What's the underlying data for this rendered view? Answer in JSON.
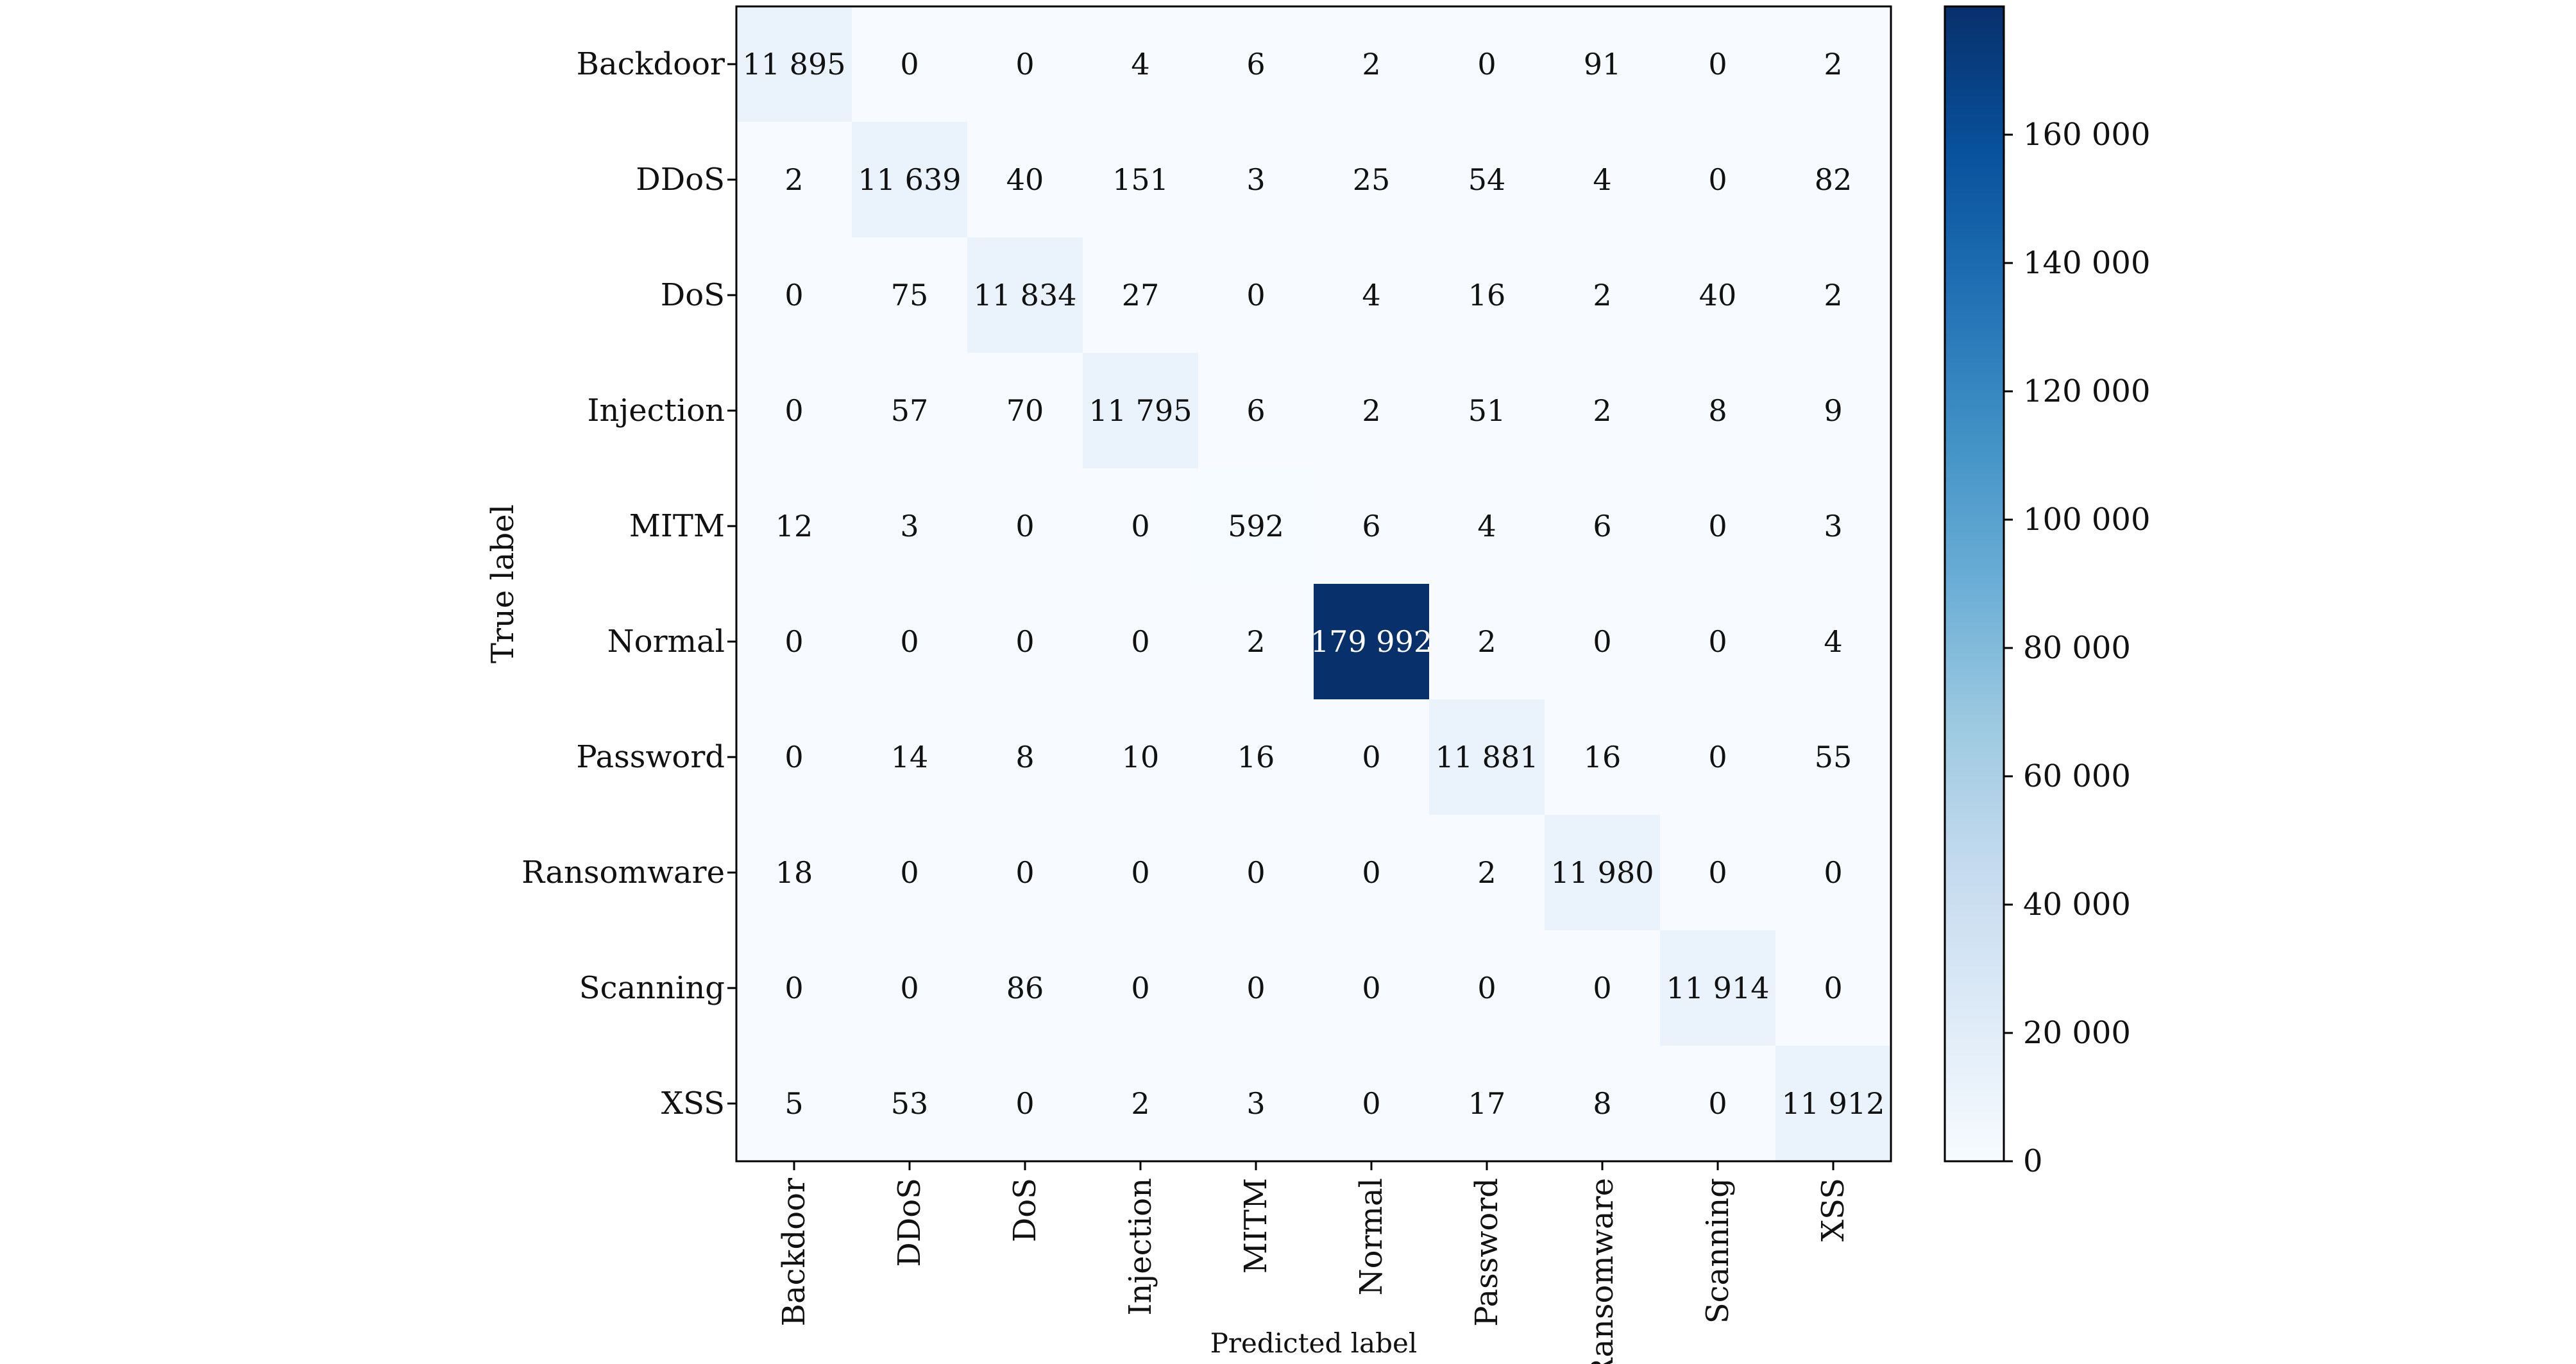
{
  "chart_data": {
    "type": "heatmap",
    "title": "",
    "xlabel": "Predicted label",
    "ylabel": "True label",
    "x_categories": [
      "Backdoor",
      "DDoS",
      "DoS",
      "Injection",
      "MITM",
      "Normal",
      "Password",
      "Ransomware",
      "Scanning",
      "XSS"
    ],
    "y_categories": [
      "Backdoor",
      "DDoS",
      "DoS",
      "Injection",
      "MITM",
      "Normal",
      "Password",
      "Ransomware",
      "Scanning",
      "XSS"
    ],
    "cell_labels": [
      [
        "11 895",
        "0",
        "0",
        "4",
        "6",
        "2",
        "0",
        "91",
        "0",
        "2"
      ],
      [
        "2",
        "11 639",
        "40",
        "151",
        "3",
        "25",
        "54",
        "4",
        "0",
        "82"
      ],
      [
        "0",
        "75",
        "11 834",
        "27",
        "0",
        "4",
        "16",
        "2",
        "40",
        "2"
      ],
      [
        "0",
        "57",
        "70",
        "11 795",
        "6",
        "2",
        "51",
        "2",
        "8",
        "9"
      ],
      [
        "12",
        "3",
        "0",
        "0",
        "592",
        "6",
        "4",
        "6",
        "0",
        "3"
      ],
      [
        "0",
        "0",
        "0",
        "0",
        "2",
        "179 992",
        "2",
        "0",
        "0",
        "4"
      ],
      [
        "0",
        "14",
        "8",
        "10",
        "16",
        "0",
        "11 881",
        "16",
        "0",
        "55"
      ],
      [
        "18",
        "0",
        "0",
        "0",
        "0",
        "0",
        "2",
        "11 980",
        "0",
        "0"
      ],
      [
        "0",
        "0",
        "86",
        "0",
        "0",
        "0",
        "0",
        "0",
        "11 914",
        "0"
      ],
      [
        "5",
        "53",
        "0",
        "2",
        "3",
        "0",
        "17",
        "8",
        "0",
        "11 912"
      ]
    ],
    "values": [
      [
        11895,
        0,
        0,
        4,
        6,
        2,
        0,
        91,
        0,
        2
      ],
      [
        2,
        11639,
        40,
        151,
        3,
        25,
        54,
        4,
        0,
        82
      ],
      [
        0,
        75,
        11834,
        27,
        0,
        4,
        16,
        2,
        40,
        2
      ],
      [
        0,
        57,
        70,
        11795,
        6,
        2,
        51,
        2,
        8,
        9
      ],
      [
        12,
        3,
        0,
        0,
        592,
        6,
        4,
        6,
        0,
        3
      ],
      [
        0,
        0,
        0,
        0,
        2,
        179992,
        2,
        0,
        0,
        4
      ],
      [
        0,
        14,
        8,
        10,
        16,
        0,
        11881,
        16,
        0,
        55
      ],
      [
        18,
        0,
        0,
        0,
        0,
        0,
        2,
        11980,
        0,
        0
      ],
      [
        0,
        0,
        86,
        0,
        0,
        0,
        0,
        0,
        11914,
        0
      ],
      [
        5,
        53,
        0,
        2,
        3,
        0,
        17,
        8,
        0,
        11912
      ]
    ],
    "colorbar": {
      "colormap": "Blues",
      "range": [
        0,
        179992
      ],
      "ticks": [
        0,
        20000,
        40000,
        60000,
        80000,
        100000,
        120000,
        140000,
        160000
      ],
      "tick_labels": [
        "0",
        "20 000",
        "40 000",
        "60 000",
        "80 000",
        "100 000",
        "120 000",
        "140 000",
        "160 000"
      ]
    },
    "legend": "colorbar right",
    "grid": false
  }
}
